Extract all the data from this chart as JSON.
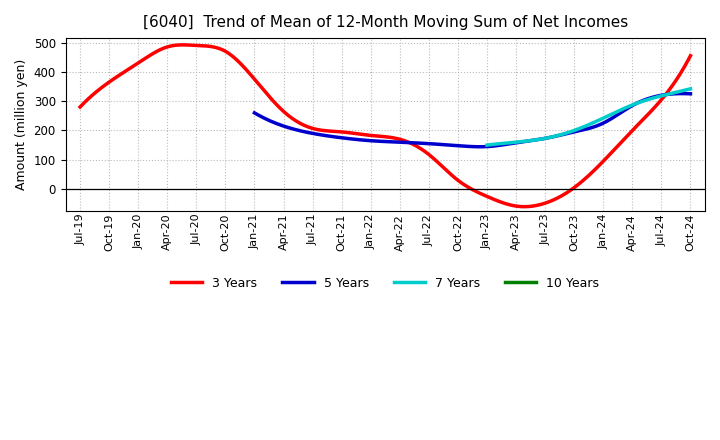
{
  "title": "[6040]  Trend of Mean of 12-Month Moving Sum of Net Incomes",
  "ylabel": "Amount (million yen)",
  "background_color": "#ffffff",
  "plot_background": "#ffffff",
  "ylim": [
    -75,
    515
  ],
  "yticks": [
    0,
    100,
    200,
    300,
    400,
    500
  ],
  "grid_color": "#bbbbbb",
  "x_labels": [
    "Jul-19",
    "Oct-19",
    "Jan-20",
    "Apr-20",
    "Jul-20",
    "Oct-20",
    "Jan-21",
    "Apr-21",
    "Jul-21",
    "Oct-21",
    "Jan-22",
    "Apr-22",
    "Jul-22",
    "Oct-22",
    "Jan-23",
    "Apr-23",
    "Jul-23",
    "Oct-23",
    "Jan-24",
    "Apr-24",
    "Jul-24",
    "Oct-24"
  ],
  "series_3yr": {
    "color": "#ff0000",
    "linewidth": 2.5,
    "label": "3 Years",
    "x": [
      0,
      1,
      2,
      3,
      4,
      5,
      6,
      7,
      8,
      9,
      10,
      11,
      12,
      13,
      14,
      15,
      16,
      17,
      18,
      19,
      20,
      21
    ],
    "y": [
      280,
      365,
      430,
      485,
      490,
      470,
      375,
      265,
      207,
      195,
      183,
      170,
      118,
      30,
      -25,
      -58,
      -48,
      5,
      95,
      200,
      305,
      455
    ]
  },
  "series_5yr": {
    "color": "#0000cc",
    "linewidth": 2.5,
    "label": "5 Years",
    "x": [
      6,
      7,
      8,
      9,
      10,
      11,
      12,
      13,
      14,
      15,
      16,
      17,
      18,
      19,
      20,
      21
    ],
    "y": [
      260,
      215,
      190,
      175,
      165,
      160,
      155,
      148,
      145,
      158,
      173,
      195,
      225,
      285,
      320,
      325
    ]
  },
  "series_7yr": {
    "color": "#00cccc",
    "linewidth": 2.5,
    "label": "7 Years",
    "x": [
      14,
      15,
      16,
      17,
      18,
      19,
      20,
      21
    ],
    "y": [
      150,
      160,
      173,
      200,
      242,
      287,
      318,
      342
    ]
  },
  "series_10yr": {
    "color": "#008000",
    "linewidth": 2.5,
    "label": "10 Years",
    "x": [],
    "y": []
  },
  "legend_entries": [
    "3 Years",
    "5 Years",
    "7 Years",
    "10 Years"
  ],
  "legend_colors": [
    "#ff0000",
    "#0000cc",
    "#00cccc",
    "#008000"
  ]
}
